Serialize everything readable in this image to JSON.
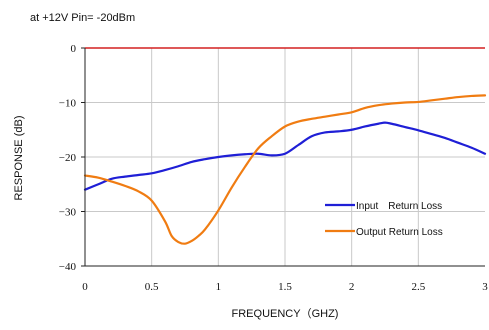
{
  "subtitle": "at +12V Pin= -20dBm",
  "colors": {
    "input": "#1f1fd6",
    "output": "#f07c12",
    "zero_line": "#d42020",
    "grid": "#c9c9c9",
    "frame": "#222222"
  },
  "chart_data": {
    "type": "line",
    "title": "",
    "subtitle": "at +12V Pin= -20dBm",
    "xlabel": "FREQUENCY（GHZ)",
    "ylabel": "RESPONSE (dB)",
    "xlim": [
      0,
      3
    ],
    "ylim": [
      -40,
      0
    ],
    "xticks": [
      0,
      0.5,
      1,
      1.5,
      2,
      2.5,
      3
    ],
    "xtick_labels": [
      "0",
      "0.5",
      "1",
      "1.5",
      "2",
      "2.5",
      "3"
    ],
    "yticks": [
      0,
      -10,
      -20,
      -30,
      -40
    ],
    "ytick_labels": [
      "0",
      "−10",
      "−20",
      "−30",
      "−40"
    ],
    "grid": true,
    "legend_position": "lower-right",
    "reference_line": {
      "y": 0
    },
    "series": [
      {
        "name": "Input　Return Loss",
        "key": "input",
        "x": [
          0,
          0.1,
          0.2,
          0.3,
          0.4,
          0.5,
          0.6,
          0.7,
          0.8,
          0.9,
          1.0,
          1.1,
          1.2,
          1.3,
          1.4,
          1.5,
          1.6,
          1.7,
          1.8,
          1.9,
          2.0,
          2.1,
          2.2,
          2.25,
          2.3,
          2.4,
          2.5,
          2.6,
          2.7,
          2.8,
          2.9,
          3.0
        ],
        "y": [
          -26.0,
          -25.0,
          -24.0,
          -23.6,
          -23.3,
          -23.0,
          -22.4,
          -21.7,
          -20.9,
          -20.4,
          -20.0,
          -19.7,
          -19.5,
          -19.4,
          -19.7,
          -19.4,
          -17.8,
          -16.2,
          -15.5,
          -15.3,
          -15.0,
          -14.4,
          -13.9,
          -13.7,
          -13.9,
          -14.5,
          -15.1,
          -15.8,
          -16.5,
          -17.4,
          -18.3,
          -19.4
        ]
      },
      {
        "name": "Output Return Loss",
        "key": "output",
        "x": [
          0,
          0.1,
          0.2,
          0.3,
          0.4,
          0.5,
          0.6,
          0.65,
          0.7,
          0.75,
          0.8,
          0.85,
          0.9,
          1.0,
          1.1,
          1.2,
          1.3,
          1.4,
          1.5,
          1.6,
          1.7,
          1.8,
          1.9,
          2.0,
          2.1,
          2.2,
          2.3,
          2.4,
          2.5,
          2.6,
          2.7,
          2.8,
          2.9,
          3.0
        ],
        "y": [
          -23.4,
          -23.8,
          -24.5,
          -25.3,
          -26.3,
          -28.0,
          -31.8,
          -34.5,
          -35.6,
          -35.9,
          -35.4,
          -34.5,
          -33.3,
          -29.8,
          -25.6,
          -21.8,
          -18.4,
          -16.2,
          -14.4,
          -13.5,
          -13.0,
          -12.6,
          -12.2,
          -11.8,
          -11.0,
          -10.5,
          -10.2,
          -10.0,
          -9.9,
          -9.6,
          -9.3,
          -9.0,
          -8.8,
          -8.7
        ]
      }
    ]
  }
}
